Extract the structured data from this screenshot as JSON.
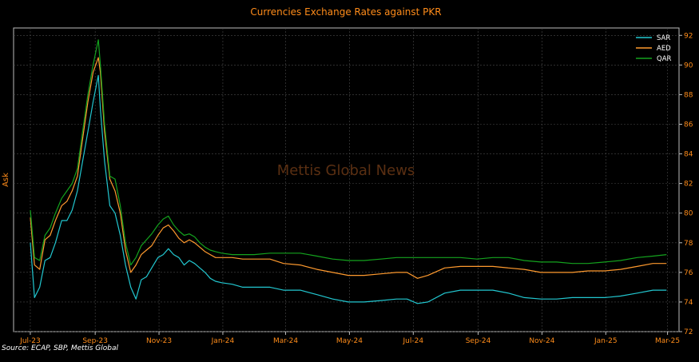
{
  "watermark": "Mettis Global News",
  "source": "Source: ECAP, SBP, Mettis Global",
  "colors": {
    "background": "#000000",
    "grid": "#4a4a4a",
    "text": "#ff8c1a",
    "SAR": "#22c7d0",
    "AED": "#ff9a2e",
    "QAR": "#14a31e"
  },
  "chart_data": {
    "type": "line",
    "title": "Currencies Exchange Rates against PKR",
    "ylabel": "Ask",
    "xlabel": "",
    "x_ticks": [
      "Jul-23",
      "Sep-23",
      "Nov-23",
      "Jan-24",
      "Mar-24",
      "May-24",
      "Jul-24",
      "Sep-24",
      "Nov-24",
      "Jan-25",
      "Mar-25"
    ],
    "ylim": [
      72,
      92.5
    ],
    "y_ticks": [
      72,
      74,
      76,
      78,
      80,
      82,
      84,
      86,
      88,
      90,
      92
    ],
    "y_axis_side": "right",
    "grid": true,
    "legend": "top-right",
    "x": [
      "2023-07-01",
      "2023-07-05",
      "2023-07-10",
      "2023-07-15",
      "2023-07-20",
      "2023-07-25",
      "2023-07-31",
      "2023-08-05",
      "2023-08-10",
      "2023-08-15",
      "2023-08-20",
      "2023-08-25",
      "2023-08-30",
      "2023-09-04",
      "2023-09-06",
      "2023-09-10",
      "2023-09-15",
      "2023-09-20",
      "2023-09-25",
      "2023-09-30",
      "2023-10-05",
      "2023-10-10",
      "2023-10-15",
      "2023-10-20",
      "2023-10-25",
      "2023-10-31",
      "2023-11-05",
      "2023-11-10",
      "2023-11-15",
      "2023-11-20",
      "2023-11-25",
      "2023-11-30",
      "2023-12-05",
      "2023-12-10",
      "2023-12-15",
      "2023-12-20",
      "2023-12-25",
      "2023-12-31",
      "2024-01-10",
      "2024-01-20",
      "2024-01-31",
      "2024-02-15",
      "2024-02-28",
      "2024-03-15",
      "2024-03-31",
      "2024-04-15",
      "2024-04-30",
      "2024-05-15",
      "2024-05-31",
      "2024-06-15",
      "2024-06-25",
      "2024-07-05",
      "2024-07-15",
      "2024-07-31",
      "2024-08-15",
      "2024-08-31",
      "2024-09-15",
      "2024-09-30",
      "2024-10-15",
      "2024-10-31",
      "2024-11-15",
      "2024-11-30",
      "2024-12-15",
      "2024-12-31",
      "2025-01-15",
      "2025-01-31",
      "2025-02-15",
      "2025-02-28"
    ],
    "series": [
      {
        "name": "SAR",
        "values": [
          78.0,
          74.3,
          75.0,
          76.8,
          77.0,
          78.0,
          79.5,
          79.5,
          80.2,
          81.5,
          83.5,
          85.5,
          87.5,
          89.3,
          87.0,
          83.5,
          80.5,
          80.0,
          78.5,
          76.5,
          75.0,
          74.2,
          75.5,
          75.7,
          76.3,
          77.0,
          77.2,
          77.6,
          77.2,
          77.0,
          76.5,
          76.8,
          76.6,
          76.3,
          76.0,
          75.6,
          75.4,
          75.3,
          75.2,
          75.0,
          75.0,
          75.0,
          74.8,
          74.8,
          74.5,
          74.2,
          74.0,
          74.0,
          74.1,
          74.2,
          74.2,
          73.9,
          74.0,
          74.6,
          74.8,
          74.8,
          74.8,
          74.6,
          74.3,
          74.2,
          74.2,
          74.3,
          74.3,
          74.3,
          74.4,
          74.6,
          74.8,
          74.8
        ]
      },
      {
        "name": "AED",
        "values": [
          79.7,
          76.5,
          76.2,
          78.2,
          78.5,
          79.5,
          80.5,
          80.8,
          81.5,
          82.5,
          85.0,
          87.5,
          89.5,
          90.5,
          89.5,
          85.5,
          82.3,
          81.5,
          80.0,
          77.5,
          76.0,
          76.5,
          77.2,
          77.5,
          77.8,
          78.5,
          79.0,
          79.2,
          78.8,
          78.3,
          78.0,
          78.2,
          78.0,
          77.7,
          77.4,
          77.2,
          77.0,
          77.0,
          77.0,
          76.9,
          76.9,
          76.9,
          76.6,
          76.5,
          76.2,
          76.0,
          75.8,
          75.8,
          75.9,
          76.0,
          76.0,
          75.6,
          75.8,
          76.3,
          76.4,
          76.4,
          76.4,
          76.3,
          76.2,
          76.0,
          76.0,
          76.0,
          76.1,
          76.1,
          76.2,
          76.4,
          76.6,
          76.6
        ]
      },
      {
        "name": "QAR",
        "values": [
          80.2,
          77.0,
          76.8,
          78.5,
          79.0,
          80.0,
          81.0,
          81.5,
          82.0,
          83.0,
          85.5,
          88.0,
          90.0,
          91.7,
          90.0,
          86.0,
          82.5,
          82.3,
          80.5,
          78.0,
          76.5,
          77.0,
          77.8,
          78.2,
          78.6,
          79.2,
          79.6,
          79.8,
          79.2,
          78.8,
          78.5,
          78.6,
          78.4,
          78.0,
          77.7,
          77.5,
          77.4,
          77.3,
          77.2,
          77.2,
          77.2,
          77.3,
          77.3,
          77.3,
          77.1,
          76.9,
          76.8,
          76.8,
          76.9,
          77.0,
          77.0,
          77.0,
          77.0,
          77.0,
          77.0,
          76.9,
          77.0,
          77.0,
          76.8,
          76.7,
          76.7,
          76.6,
          76.6,
          76.7,
          76.8,
          77.0,
          77.1,
          77.2
        ]
      }
    ]
  }
}
